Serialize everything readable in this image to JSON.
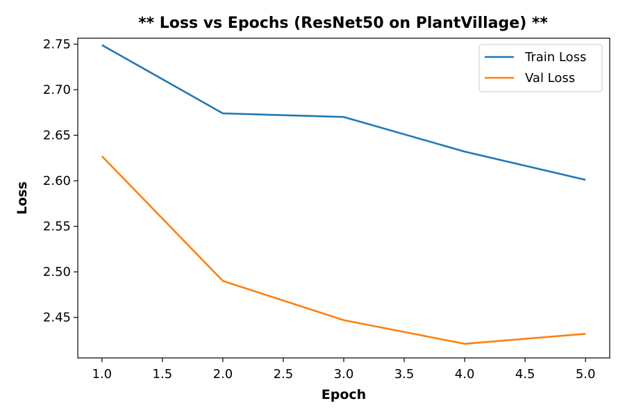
{
  "chart_data": {
    "type": "line",
    "title": "** Loss vs Epochs (ResNet50 on PlantVillage) **",
    "xlabel": "Epoch",
    "ylabel": "Loss",
    "x": [
      1,
      2,
      3,
      4,
      5
    ],
    "xlim": [
      0.8,
      5.2
    ],
    "ylim": [
      2.4055,
      2.7565
    ],
    "xticks": [
      1.0,
      1.5,
      2.0,
      2.5,
      3.0,
      3.5,
      4.0,
      4.5,
      5.0
    ],
    "xtick_labels": [
      "1.0",
      "1.5",
      "2.0",
      "2.5",
      "3.0",
      "3.5",
      "4.0",
      "4.5",
      "5.0"
    ],
    "yticks": [
      2.45,
      2.5,
      2.55,
      2.6,
      2.65,
      2.7,
      2.75
    ],
    "ytick_labels": [
      "2.45",
      "2.50",
      "2.55",
      "2.60",
      "2.65",
      "2.70",
      "2.75"
    ],
    "grid": false,
    "legend_position": "top-right",
    "series": [
      {
        "name": "Train Loss",
        "color": "#1f77b4",
        "values": [
          2.749,
          2.674,
          2.67,
          2.632,
          2.601
        ]
      },
      {
        "name": "Val Loss",
        "color": "#ff7f0e",
        "values": [
          2.627,
          2.49,
          2.447,
          2.421,
          2.432
        ]
      }
    ]
  }
}
